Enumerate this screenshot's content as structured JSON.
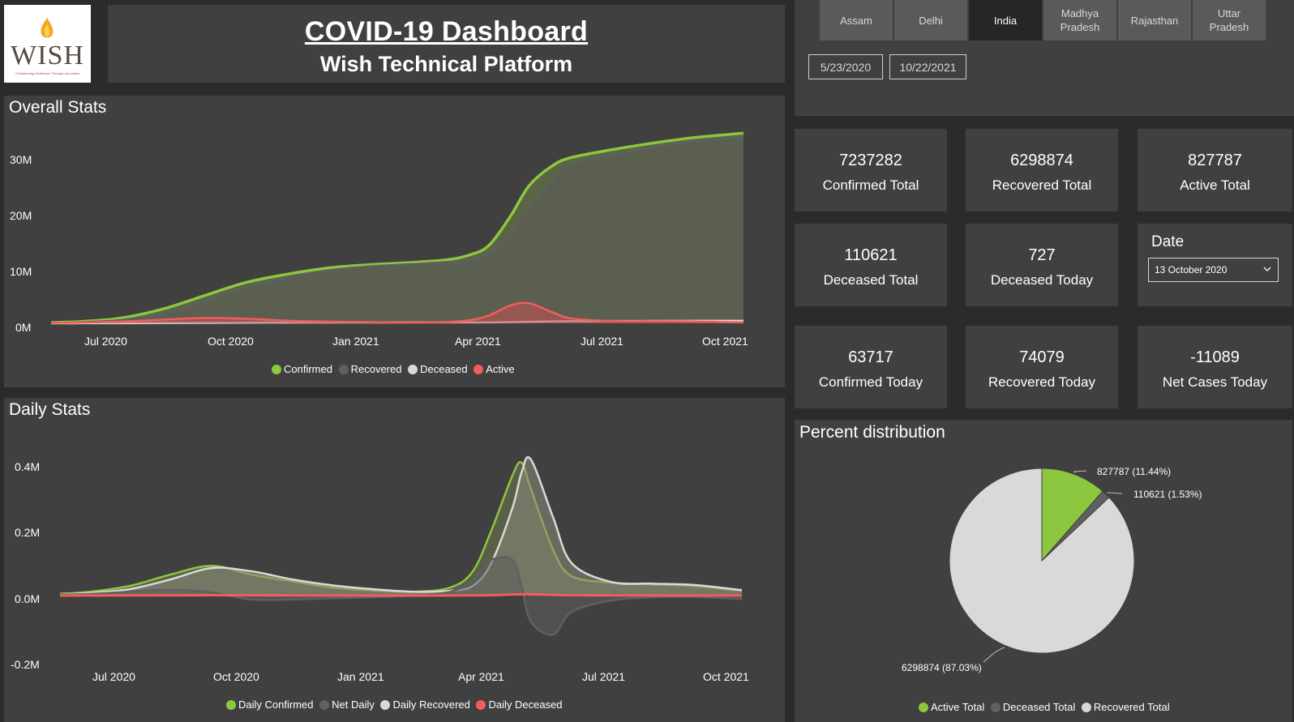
{
  "header": {
    "logo_text": "WISH",
    "logo_tagline": "Transforming Healthcare Through Innovation",
    "title": "COVID-19 Dashboard",
    "subtitle": "Wish Technical Platform"
  },
  "region_tabs": [
    {
      "label": "Assam",
      "active": false
    },
    {
      "label": "Delhi",
      "active": false
    },
    {
      "label": "India",
      "active": true
    },
    {
      "label": "Madhya Pradesh",
      "active": false
    },
    {
      "label": "Rajasthan",
      "active": false
    },
    {
      "label": "Uttar Pradesh",
      "active": false
    }
  ],
  "date_range": {
    "start": "5/23/2020",
    "end": "10/22/2021"
  },
  "kpis": {
    "confirmed_total": {
      "value": "7237282",
      "label": "Confirmed Total"
    },
    "recovered_total": {
      "value": "6298874",
      "label": "Recovered Total"
    },
    "active_total": {
      "value": "827787",
      "label": "Active Total"
    },
    "deceased_total": {
      "value": "110621",
      "label": "Deceased Total"
    },
    "deceased_today": {
      "value": "727",
      "label": "Deceased Today"
    },
    "confirmed_today": {
      "value": "63717",
      "label": "Confirmed Today"
    },
    "recovered_today": {
      "value": "74079",
      "label": "Recovered Today"
    },
    "net_cases_today": {
      "value": "-11089",
      "label": "Net Cases Today"
    }
  },
  "date_filter": {
    "title": "Date",
    "selected": "13 October 2020"
  },
  "colors": {
    "confirmed": "#8dc63f",
    "recovered": "#606060",
    "deceased": "#d9d9d9",
    "active": "#f35c5c",
    "panel": "#404040",
    "background": "#2b2b2b"
  },
  "chart_data": [
    {
      "type": "area",
      "title": "Overall Stats",
      "x_ticks": [
        "Jul 2020",
        "Oct 2020",
        "Jan 2021",
        "Apr 2021",
        "Jul 2021",
        "Oct 2021"
      ],
      "y_ticks": [
        "30M",
        "20M",
        "10M",
        "0M"
      ],
      "ylim": [
        0,
        34000000
      ],
      "x": [
        "2020-05-23",
        "2020-06-15",
        "2020-07-15",
        "2020-08-15",
        "2020-09-15",
        "2020-10-15",
        "2020-11-15",
        "2020-12-15",
        "2021-01-15",
        "2021-02-15",
        "2021-03-15",
        "2021-04-01",
        "2021-04-15",
        "2021-05-01",
        "2021-05-15",
        "2021-06-01",
        "2021-06-15",
        "2021-07-15",
        "2021-08-15",
        "2021-09-15",
        "2021-10-22"
      ],
      "series": [
        {
          "name": "Confirmed",
          "values": [
            0.13,
            0.33,
            0.97,
            2.6,
            5.0,
            7.3,
            8.8,
            9.9,
            10.5,
            10.9,
            11.4,
            12.3,
            14.0,
            19.2,
            24.7,
            28.2,
            29.7,
            31.1,
            32.3,
            33.3,
            34.1
          ]
        },
        {
          "name": "Recovered",
          "values": [
            0.05,
            0.2,
            0.62,
            1.9,
            4.0,
            6.4,
            8.2,
            9.5,
            10.2,
            10.6,
            11.0,
            11.5,
            12.5,
            16.0,
            21.0,
            25.5,
            28.5,
            30.1,
            31.6,
            32.6,
            33.5
          ]
        },
        {
          "name": "Deceased",
          "values": [
            0.004,
            0.01,
            0.025,
            0.05,
            0.08,
            0.11,
            0.13,
            0.145,
            0.152,
            0.156,
            0.16,
            0.163,
            0.17,
            0.21,
            0.27,
            0.34,
            0.38,
            0.41,
            0.43,
            0.445,
            0.453
          ]
        },
        {
          "name": "Active",
          "values": [
            0.07,
            0.12,
            0.33,
            0.66,
            0.96,
            0.83,
            0.48,
            0.31,
            0.21,
            0.14,
            0.24,
            0.58,
            1.4,
            3.2,
            3.6,
            2.0,
            0.9,
            0.42,
            0.37,
            0.32,
            0.17
          ]
        }
      ]
    },
    {
      "type": "line",
      "title": "Daily Stats",
      "x_ticks": [
        "Jul 2020",
        "Oct 2020",
        "Jan 2021",
        "Apr 2021",
        "Jul 2021",
        "Oct 2021"
      ],
      "y_ticks": [
        "0.4M",
        "0.2M",
        "0.0M",
        "-0.2M"
      ],
      "ylim": [
        -0.2,
        0.42
      ],
      "x": [
        "2020-05-23",
        "2020-06-15",
        "2020-07-15",
        "2020-08-15",
        "2020-09-15",
        "2020-10-15",
        "2020-11-15",
        "2020-12-15",
        "2021-01-15",
        "2021-02-15",
        "2021-03-15",
        "2021-04-01",
        "2021-04-15",
        "2021-05-01",
        "2021-05-08",
        "2021-05-15",
        "2021-06-01",
        "2021-06-15",
        "2021-07-15",
        "2021-08-15",
        "2021-09-15",
        "2021-10-22"
      ],
      "series": [
        {
          "name": "Daily Confirmed",
          "values": [
            0.006,
            0.012,
            0.03,
            0.065,
            0.092,
            0.065,
            0.044,
            0.025,
            0.016,
            0.012,
            0.025,
            0.075,
            0.2,
            0.37,
            0.41,
            0.33,
            0.14,
            0.06,
            0.04,
            0.035,
            0.03,
            0.015
          ]
        },
        {
          "name": "Net Daily",
          "values": [
            0.003,
            0.005,
            0.012,
            0.018,
            0.01,
            -0.012,
            -0.012,
            -0.008,
            -0.005,
            0.0,
            0.012,
            0.048,
            0.11,
            0.11,
            0.03,
            -0.08,
            -0.12,
            -0.05,
            -0.015,
            -0.005,
            -0.004,
            -0.01
          ]
        },
        {
          "name": "Daily Recovered",
          "values": [
            0.003,
            0.008,
            0.02,
            0.05,
            0.085,
            0.075,
            0.05,
            0.032,
            0.02,
            0.012,
            0.015,
            0.03,
            0.1,
            0.27,
            0.38,
            0.42,
            0.24,
            0.1,
            0.042,
            0.037,
            0.033,
            0.017
          ]
        },
        {
          "name": "Daily Deceased",
          "values": [
            0.0001,
            0.0003,
            0.0006,
            0.001,
            0.0011,
            0.0008,
            0.0005,
            0.0003,
            0.0002,
            0.0001,
            0.0002,
            0.0006,
            0.0012,
            0.0035,
            0.004,
            0.0042,
            0.0025,
            0.0012,
            0.0006,
            0.0005,
            0.0004,
            0.0003
          ]
        }
      ]
    },
    {
      "type": "pie",
      "title": "Percent distribution",
      "categories": [
        "Active Total",
        "Deceased Total",
        "Recovered Total"
      ],
      "values": [
        827787,
        110621,
        6298874
      ],
      "labels": [
        "827787 (11.44%)",
        "110621 (1.53%)",
        "6298874 (87.03%)"
      ]
    }
  ]
}
